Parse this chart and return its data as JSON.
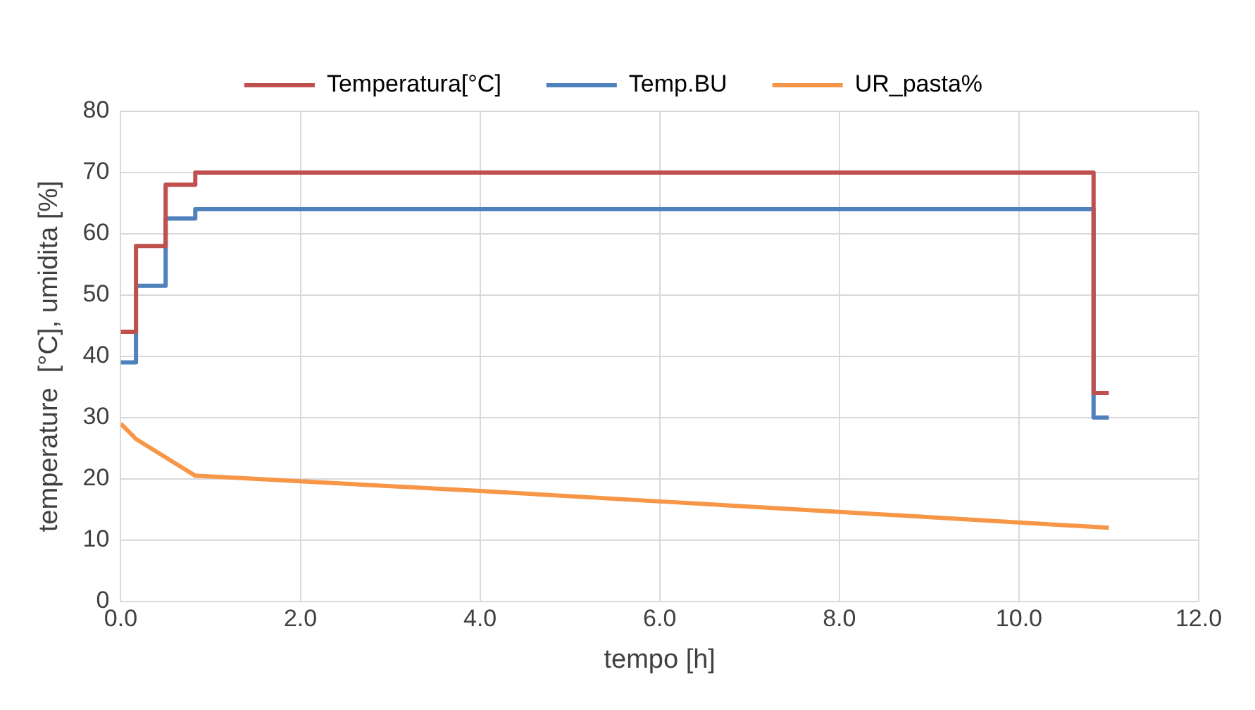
{
  "chart_data": {
    "type": "line",
    "xlabel": "tempo [h]",
    "ylabel": "temperature  [°C], umidita [%]",
    "xlim": [
      0,
      12
    ],
    "xticks": [
      {
        "value": 0,
        "label": "0.0"
      },
      {
        "value": 2,
        "label": "2.0"
      },
      {
        "value": 4,
        "label": "4.0"
      },
      {
        "value": 6,
        "label": "6.0"
      },
      {
        "value": 8,
        "label": "8.0"
      },
      {
        "value": 10,
        "label": "10.0"
      },
      {
        "value": 12,
        "label": "12.0"
      }
    ],
    "ylim": [
      0,
      80
    ],
    "yticks": [
      0,
      10,
      20,
      30,
      40,
      50,
      60,
      70,
      80
    ],
    "grid": true,
    "legend": "top",
    "marker": "none",
    "series": [
      {
        "name": "Temperatura[°C]",
        "type": "step",
        "color": "#c0504d",
        "x": [
          0,
          0.17,
          0.5,
          0.83,
          10.83,
          11
        ],
        "values": [
          44,
          58,
          68,
          70,
          34,
          34
        ]
      },
      {
        "name": "Temp.BU",
        "type": "step",
        "color": "#4f81bd",
        "x": [
          0,
          0.17,
          0.5,
          0.83,
          10.83,
          11
        ],
        "values": [
          39,
          51.5,
          62.5,
          64,
          30,
          30
        ]
      },
      {
        "name": "UR_pasta%",
        "type": "line",
        "color": "#f79646",
        "x": [
          0,
          0.17,
          0.83,
          4,
          6,
          8,
          11
        ],
        "values": [
          29,
          26.5,
          20.5,
          18,
          16.3,
          14.6,
          12
        ]
      }
    ]
  }
}
